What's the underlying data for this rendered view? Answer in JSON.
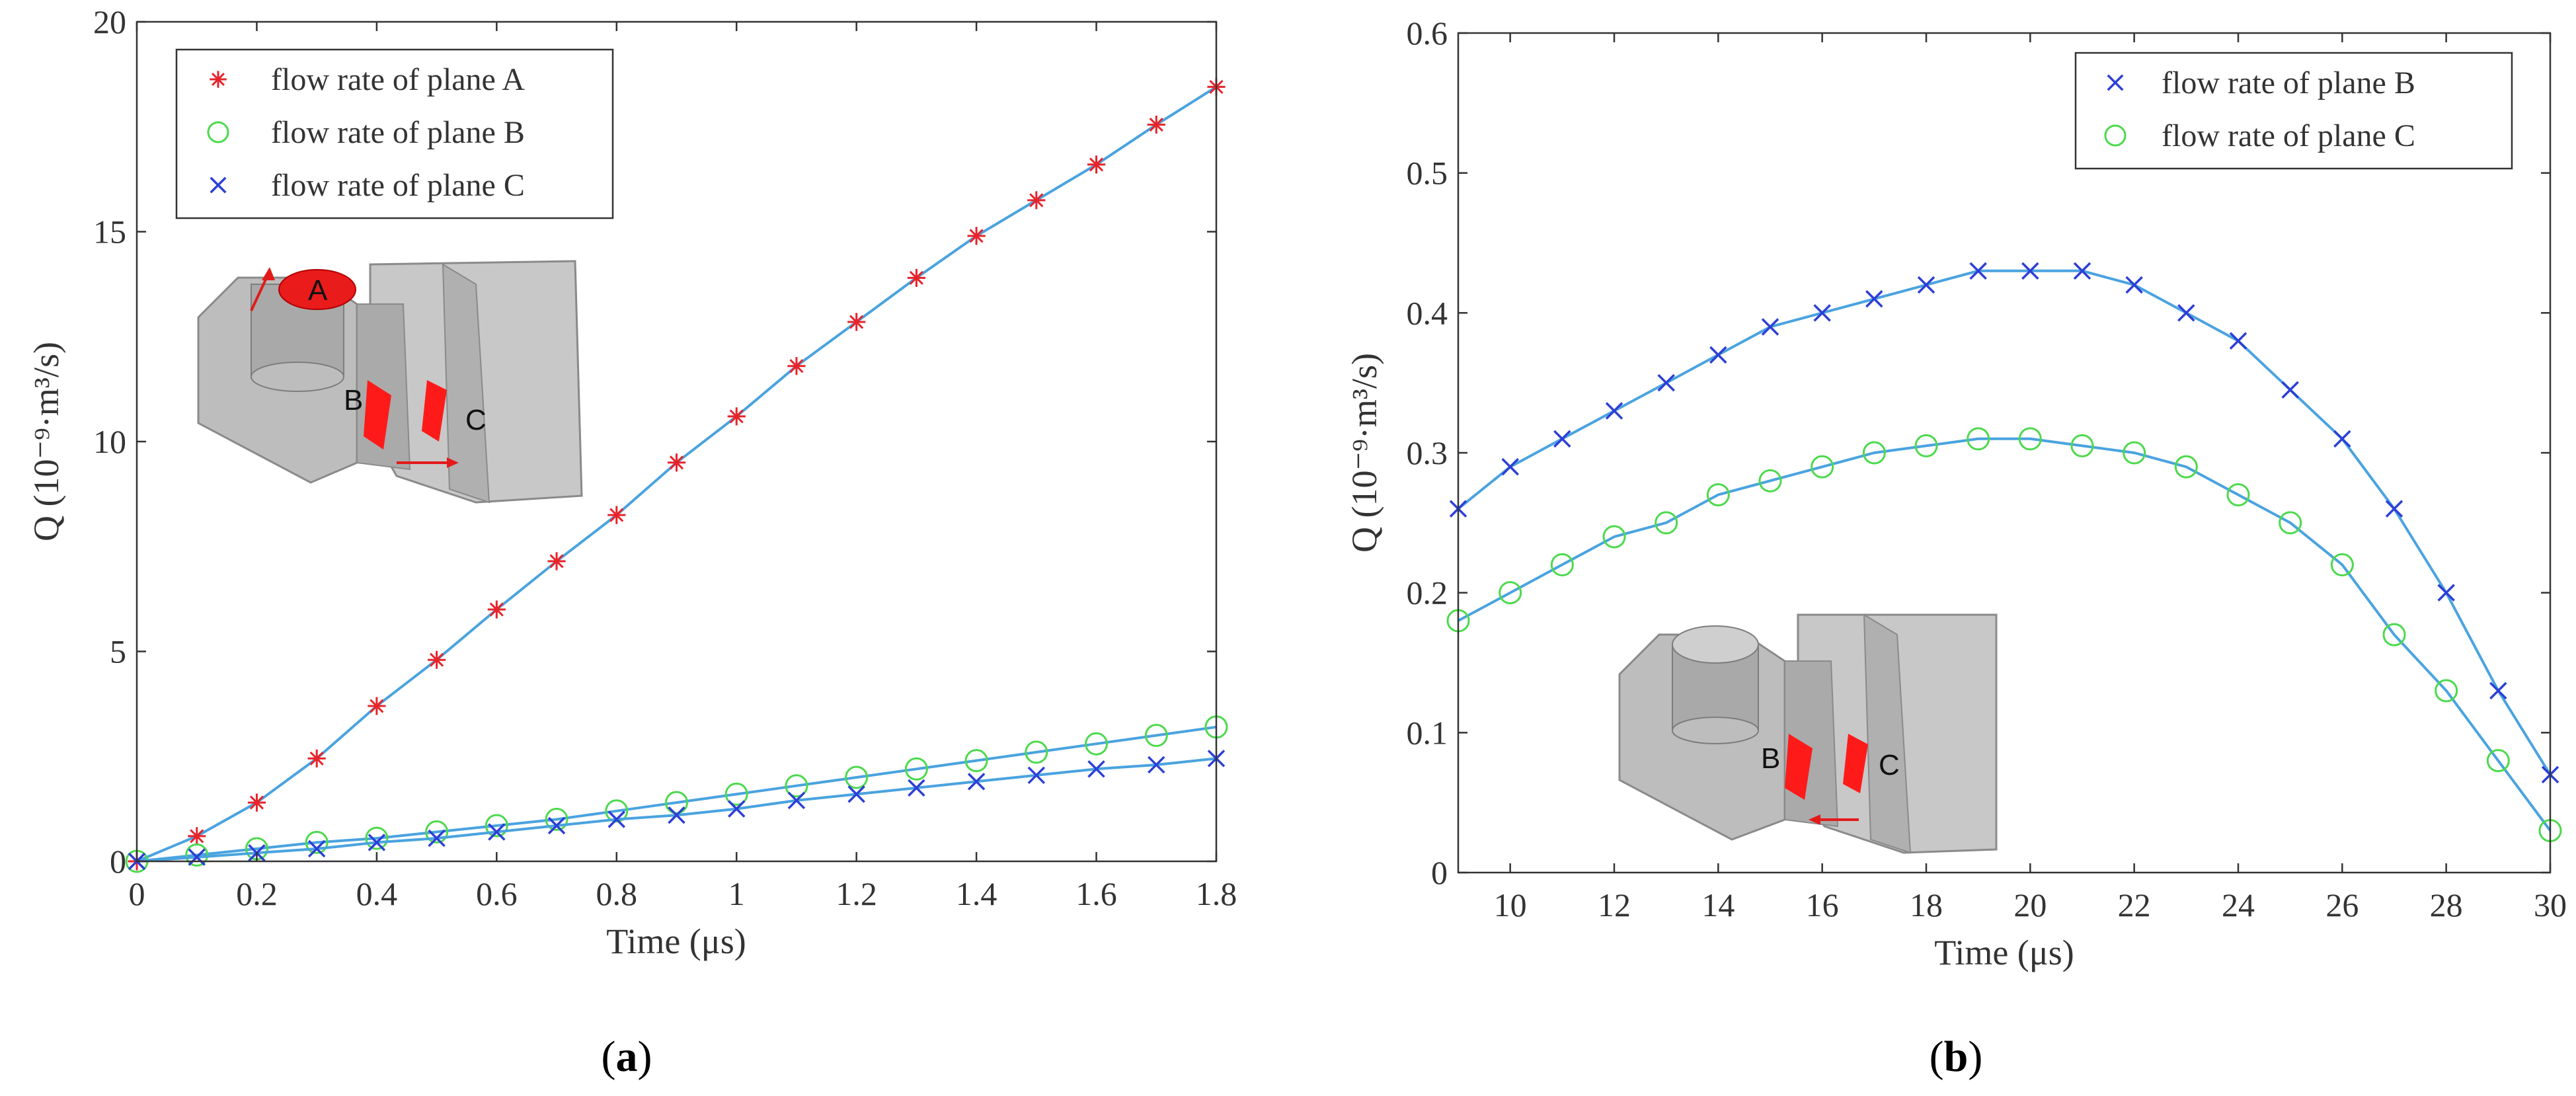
{
  "chart_data": [
    {
      "type": "line",
      "panel_label": "a",
      "title": "",
      "xlabel": "Time (μs)",
      "ylabel": "Q (10⁻⁹·m³/s)",
      "xlim": [
        0,
        1.8
      ],
      "ylim": [
        0,
        20
      ],
      "xticks": [
        0,
        0.2,
        0.4,
        0.6,
        0.8,
        1,
        1.2,
        1.4,
        1.6,
        1.8
      ],
      "xtick_labels": [
        "0",
        "0.2",
        "0.4",
        "0.6",
        "0.8",
        "1",
        "1.2",
        "1.4",
        "1.6",
        "1.8"
      ],
      "yticks": [
        0,
        5,
        10,
        15,
        20
      ],
      "ytick_labels": [
        "0",
        "5",
        "10",
        "15",
        "20"
      ],
      "legend_position": "top-left",
      "x": [
        0,
        0.1,
        0.2,
        0.3,
        0.4,
        0.5,
        0.6,
        0.7,
        0.8,
        0.9,
        1.0,
        1.1,
        1.2,
        1.3,
        1.4,
        1.5,
        1.6,
        1.7,
        1.8
      ],
      "series": [
        {
          "name": "flow rate of plane A",
          "marker": "star",
          "color": "#e8232a",
          "values": [
            0,
            0.6,
            1.4,
            2.45,
            3.7,
            4.8,
            6.0,
            7.15,
            8.25,
            9.5,
            10.6,
            11.8,
            12.85,
            13.9,
            14.9,
            15.75,
            16.6,
            17.55,
            18.45
          ]
        },
        {
          "name": "flow rate of plane B",
          "marker": "circle",
          "color": "#4cd94c",
          "values": [
            0,
            0.15,
            0.3,
            0.45,
            0.55,
            0.7,
            0.85,
            1.0,
            1.2,
            1.4,
            1.6,
            1.8,
            2.0,
            2.2,
            2.4,
            2.6,
            2.8,
            3.0,
            3.2
          ]
        },
        {
          "name": "flow rate of plane C",
          "marker": "x",
          "color": "#2c3fd6",
          "values": [
            0,
            0.1,
            0.2,
            0.3,
            0.45,
            0.55,
            0.7,
            0.85,
            1.0,
            1.1,
            1.25,
            1.45,
            1.6,
            1.75,
            1.9,
            2.05,
            2.2,
            2.3,
            2.45
          ]
        }
      ],
      "fit_line_color": "#4aa3df",
      "inset_labels": [
        "A",
        "B",
        "C"
      ]
    },
    {
      "type": "line",
      "panel_label": "b",
      "title": "",
      "xlabel": "Time (μs)",
      "ylabel": "Q (10⁻⁹·m³/s)",
      "xlim": [
        9,
        30
      ],
      "ylim": [
        0,
        0.6
      ],
      "xticks": [
        10,
        12,
        14,
        16,
        18,
        20,
        22,
        24,
        26,
        28,
        30
      ],
      "xtick_labels": [
        "10",
        "12",
        "14",
        "16",
        "18",
        "20",
        "22",
        "24",
        "26",
        "28",
        "30"
      ],
      "yticks": [
        0,
        0.1,
        0.2,
        0.3,
        0.4,
        0.5,
        0.6
      ],
      "ytick_labels": [
        "0",
        "0.1",
        "0.2",
        "0.3",
        "0.4",
        "0.5",
        "0.6"
      ],
      "legend_position": "top-right",
      "x": [
        9,
        10,
        11,
        12,
        13,
        14,
        15,
        16,
        17,
        18,
        19,
        20,
        21,
        22,
        23,
        24,
        25,
        26,
        27,
        28,
        29,
        30
      ],
      "series": [
        {
          "name": "flow rate of plane B",
          "marker": "x",
          "color": "#2c3fd6",
          "values": [
            0.26,
            0.29,
            0.31,
            0.33,
            0.35,
            0.37,
            0.39,
            0.4,
            0.41,
            0.42,
            0.43,
            0.43,
            0.43,
            0.42,
            0.4,
            0.38,
            0.345,
            0.31,
            0.26,
            0.2,
            0.13,
            0.07
          ]
        },
        {
          "name": "flow rate of plane C",
          "marker": "circle",
          "color": "#4cd94c",
          "values": [
            0.18,
            0.2,
            0.22,
            0.24,
            0.25,
            0.27,
            0.28,
            0.29,
            0.3,
            0.305,
            0.31,
            0.31,
            0.305,
            0.3,
            0.29,
            0.27,
            0.25,
            0.22,
            0.17,
            0.13,
            0.08,
            0.03
          ]
        }
      ],
      "fit_line_color": "#4aa3df",
      "inset_labels": [
        "B",
        "C"
      ]
    }
  ]
}
